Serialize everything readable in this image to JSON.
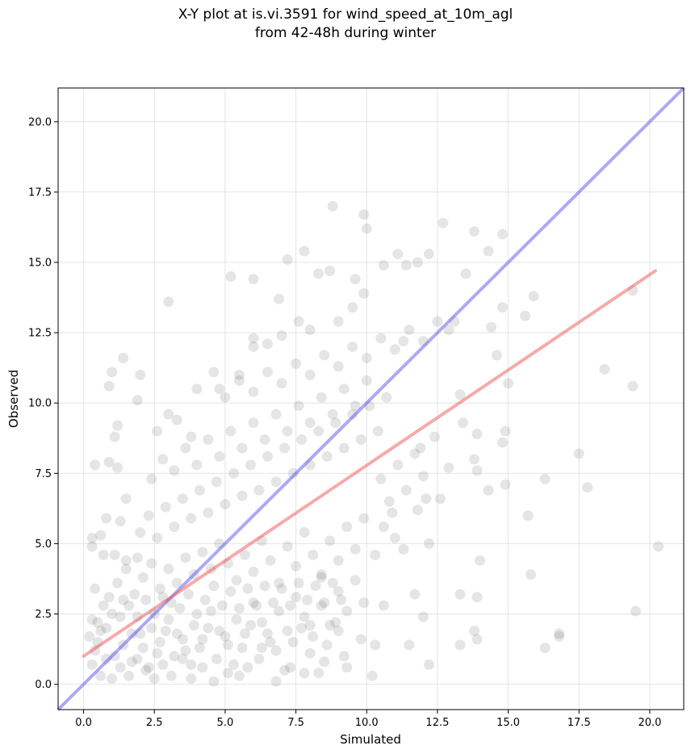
{
  "chart_data": {
    "type": "scatter",
    "title_line1": "X-Y plot at is.vi.3591 for wind_speed_at_10m_agl",
    "title_line2": "from 42-48h during winter",
    "xlabel": "Simulated",
    "ylabel": "Observed",
    "xlim": [
      -0.9,
      21.2
    ],
    "ylim": [
      -0.9,
      21.2
    ],
    "xticks": [
      "0.0",
      "2.5",
      "5.0",
      "7.5",
      "10.0",
      "12.5",
      "15.0",
      "17.5",
      "20.0"
    ],
    "yticks": [
      "0.0",
      "2.5",
      "5.0",
      "7.5",
      "10.0",
      "12.5",
      "15.0",
      "17.5",
      "20.0"
    ],
    "grid": true,
    "colors": {
      "points": "#333333",
      "identity": "#5555ee",
      "fit": "#ee5555"
    },
    "identity_line": {
      "x": [
        -0.9,
        21.2
      ],
      "y": [
        -0.9,
        21.2
      ]
    },
    "fit_line": {
      "x": [
        0.0,
        20.2
      ],
      "y": [
        1.0,
        14.7
      ]
    },
    "points": [
      [
        1.0,
        11.1
      ],
      [
        1.4,
        11.6
      ],
      [
        0.9,
        10.6
      ],
      [
        1.9,
        10.1
      ],
      [
        2.0,
        11.0
      ],
      [
        1.2,
        9.2
      ],
      [
        1.1,
        8.8
      ],
      [
        0.9,
        7.9
      ],
      [
        0.4,
        7.8
      ],
      [
        1.2,
        7.7
      ],
      [
        1.5,
        6.6
      ],
      [
        1.3,
        5.8
      ],
      [
        0.8,
        5.9
      ],
      [
        0.6,
        5.3
      ],
      [
        0.3,
        5.2
      ],
      [
        0.3,
        4.9
      ],
      [
        0.7,
        4.6
      ],
      [
        1.1,
        4.6
      ],
      [
        1.5,
        4.4
      ],
      [
        1.9,
        4.5
      ],
      [
        3.0,
        13.6
      ],
      [
        2.6,
        9.0
      ],
      [
        3.0,
        9.6
      ],
      [
        3.3,
        9.4
      ],
      [
        3.8,
        8.8
      ],
      [
        4.0,
        10.5
      ],
      [
        4.6,
        11.1
      ],
      [
        4.8,
        10.5
      ],
      [
        5.2,
        14.5
      ],
      [
        6.0,
        14.4
      ],
      [
        5.5,
        11.0
      ],
      [
        6.0,
        12.0
      ],
      [
        6.5,
        12.1
      ],
      [
        6.9,
        13.7
      ],
      [
        7.2,
        15.1
      ],
      [
        7.8,
        15.4
      ],
      [
        7.6,
        12.9
      ],
      [
        8.3,
        14.6
      ],
      [
        8.8,
        17.0
      ],
      [
        8.7,
        14.7
      ],
      [
        9.6,
        14.4
      ],
      [
        9.9,
        13.9
      ],
      [
        9.5,
        13.4
      ],
      [
        9.9,
        16.7
      ],
      [
        10.0,
        16.2
      ],
      [
        10.6,
        14.9
      ],
      [
        11.1,
        15.3
      ],
      [
        11.4,
        14.9
      ],
      [
        11.8,
        15.0
      ],
      [
        11.3,
        12.2
      ],
      [
        12.2,
        15.3
      ],
      [
        12.7,
        16.4
      ],
      [
        13.1,
        12.9
      ],
      [
        12.9,
        12.6
      ],
      [
        13.5,
        14.6
      ],
      [
        13.8,
        16.1
      ],
      [
        14.3,
        15.4
      ],
      [
        14.4,
        12.7
      ],
      [
        14.8,
        16.0
      ],
      [
        14.8,
        13.4
      ],
      [
        15.6,
        13.1
      ],
      [
        15.9,
        13.8
      ],
      [
        14.6,
        11.7
      ],
      [
        15.0,
        10.7
      ],
      [
        13.3,
        10.3
      ],
      [
        13.9,
        8.9
      ],
      [
        13.8,
        8.0
      ],
      [
        13.4,
        9.3
      ],
      [
        13.9,
        7.6
      ],
      [
        14.3,
        6.9
      ],
      [
        14.9,
        7.1
      ],
      [
        14.8,
        8.6
      ],
      [
        14.9,
        9.0
      ],
      [
        12.9,
        7.7
      ],
      [
        12.6,
        6.6
      ],
      [
        12.1,
        6.6
      ],
      [
        12.4,
        8.8
      ],
      [
        11.9,
        8.4
      ],
      [
        12.2,
        5.0
      ],
      [
        11.8,
        6.2
      ],
      [
        11.7,
        3.2
      ],
      [
        11.5,
        1.4
      ],
      [
        12.0,
        2.4
      ],
      [
        12.2,
        0.7
      ],
      [
        13.3,
        1.4
      ],
      [
        13.3,
        3.2
      ],
      [
        13.8,
        1.9
      ],
      [
        13.9,
        3.1
      ],
      [
        13.9,
        1.6
      ],
      [
        14.0,
        4.4
      ],
      [
        15.7,
        6.0
      ],
      [
        15.8,
        3.9
      ],
      [
        16.3,
        7.3
      ],
      [
        16.3,
        1.3
      ],
      [
        16.8,
        1.7
      ],
      [
        16.8,
        1.8
      ],
      [
        17.5,
        8.2
      ],
      [
        17.8,
        7.0
      ],
      [
        18.4,
        11.2
      ],
      [
        19.4,
        14.0
      ],
      [
        19.4,
        10.6
      ],
      [
        19.5,
        2.6
      ],
      [
        20.3,
        4.9
      ],
      [
        10.3,
        4.6
      ],
      [
        10.6,
        2.8
      ],
      [
        10.3,
        1.4
      ],
      [
        10.2,
        0.3
      ],
      [
        9.8,
        1.6
      ],
      [
        9.3,
        0.6
      ],
      [
        9.0,
        1.9
      ],
      [
        8.5,
        0.8
      ],
      [
        8.4,
        3.8
      ],
      [
        8.0,
        2.1
      ],
      [
        7.8,
        0.4
      ],
      [
        7.3,
        0.6
      ],
      [
        6.8,
        0.1
      ],
      [
        6.3,
        1.3
      ],
      [
        5.8,
        0.6
      ],
      [
        5.5,
        0.3
      ],
      [
        5.1,
        0.4
      ],
      [
        4.6,
        0.1
      ],
      [
        4.2,
        0.6
      ],
      [
        3.8,
        0.2
      ],
      [
        3.5,
        0.9
      ],
      [
        3.1,
        0.3
      ],
      [
        2.8,
        0.7
      ],
      [
        2.5,
        0.2
      ],
      [
        2.2,
        0.5
      ],
      [
        1.9,
        0.9
      ],
      [
        1.6,
        0.3
      ],
      [
        1.3,
        0.6
      ],
      [
        1.0,
        0.2
      ],
      [
        0.8,
        0.9
      ],
      [
        0.6,
        0.3
      ],
      [
        0.4,
        1.2
      ],
      [
        0.3,
        0.7
      ],
      [
        0.2,
        1.7
      ],
      [
        0.5,
        2.2
      ],
      [
        0.7,
        2.8
      ],
      [
        0.4,
        3.4
      ],
      [
        0.9,
        3.1
      ],
      [
        1.3,
        2.4
      ],
      [
        1.7,
        1.8
      ],
      [
        2.1,
        1.3
      ],
      [
        2.4,
        2.0
      ],
      [
        2.7,
        1.5
      ],
      [
        3.0,
        2.3
      ],
      [
        3.3,
        1.8
      ],
      [
        3.6,
        1.2
      ],
      [
        3.9,
        2.1
      ],
      [
        4.2,
        1.6
      ],
      [
        4.5,
        2.6
      ],
      [
        4.8,
        1.9
      ],
      [
        5.1,
        1.4
      ],
      [
        5.4,
        2.3
      ],
      [
        5.7,
        1.8
      ],
      [
        6.0,
        2.9
      ],
      [
        6.3,
        2.2
      ],
      [
        6.6,
        1.5
      ],
      [
        6.9,
        2.6
      ],
      [
        7.2,
        1.9
      ],
      [
        7.5,
        3.1
      ],
      [
        7.8,
        2.4
      ],
      [
        8.1,
        1.7
      ],
      [
        8.4,
        2.8
      ],
      [
        8.7,
        2.1
      ],
      [
        9.0,
        3.3
      ],
      [
        9.3,
        2.6
      ],
      [
        9.6,
        3.7
      ],
      [
        9.9,
        2.9
      ],
      [
        1.2,
        3.6
      ],
      [
        1.5,
        4.1
      ],
      [
        1.8,
        3.2
      ],
      [
        2.1,
        3.8
      ],
      [
        2.4,
        4.3
      ],
      [
        2.7,
        3.4
      ],
      [
        3.0,
        4.1
      ],
      [
        3.3,
        3.6
      ],
      [
        3.6,
        4.5
      ],
      [
        3.9,
        3.9
      ],
      [
        4.2,
        4.7
      ],
      [
        4.5,
        4.1
      ],
      [
        4.8,
        5.0
      ],
      [
        5.1,
        4.3
      ],
      [
        5.4,
        3.7
      ],
      [
        5.7,
        4.6
      ],
      [
        6.0,
        4.0
      ],
      [
        6.3,
        5.1
      ],
      [
        6.6,
        4.4
      ],
      [
        6.9,
        3.6
      ],
      [
        7.2,
        4.9
      ],
      [
        7.5,
        4.2
      ],
      [
        7.8,
        5.4
      ],
      [
        8.1,
        4.6
      ],
      [
        8.4,
        3.9
      ],
      [
        8.7,
        5.1
      ],
      [
        9.0,
        4.4
      ],
      [
        9.3,
        5.6
      ],
      [
        9.6,
        4.8
      ],
      [
        9.9,
        5.9
      ],
      [
        2.0,
        5.4
      ],
      [
        2.3,
        6.0
      ],
      [
        2.6,
        5.2
      ],
      [
        2.9,
        6.3
      ],
      [
        3.2,
        5.6
      ],
      [
        3.5,
        6.6
      ],
      [
        3.8,
        5.9
      ],
      [
        4.1,
        6.9
      ],
      [
        4.4,
        6.1
      ],
      [
        4.7,
        7.2
      ],
      [
        5.0,
        6.4
      ],
      [
        5.3,
        7.5
      ],
      [
        5.6,
        6.7
      ],
      [
        5.9,
        7.8
      ],
      [
        6.2,
        6.9
      ],
      [
        6.5,
        8.1
      ],
      [
        6.8,
        7.2
      ],
      [
        7.1,
        8.4
      ],
      [
        7.4,
        7.5
      ],
      [
        7.7,
        8.7
      ],
      [
        8.0,
        7.8
      ],
      [
        8.3,
        9.0
      ],
      [
        8.6,
        8.1
      ],
      [
        8.9,
        9.3
      ],
      [
        9.2,
        8.4
      ],
      [
        9.5,
        9.6
      ],
      [
        9.8,
        8.7
      ],
      [
        10.1,
        9.9
      ],
      [
        10.4,
        9.0
      ],
      [
        10.7,
        10.2
      ],
      [
        2.4,
        7.3
      ],
      [
        2.8,
        8.0
      ],
      [
        3.2,
        7.6
      ],
      [
        3.6,
        8.4
      ],
      [
        4.0,
        7.8
      ],
      [
        4.4,
        8.7
      ],
      [
        4.8,
        8.1
      ],
      [
        5.2,
        9.0
      ],
      [
        5.6,
        8.4
      ],
      [
        6.0,
        9.3
      ],
      [
        6.4,
        8.7
      ],
      [
        6.8,
        9.6
      ],
      [
        7.2,
        9.0
      ],
      [
        7.6,
        9.9
      ],
      [
        8.0,
        9.3
      ],
      [
        8.4,
        10.2
      ],
      [
        8.8,
        9.6
      ],
      [
        9.2,
        10.5
      ],
      [
        9.6,
        9.9
      ],
      [
        10.0,
        10.8
      ],
      [
        5.0,
        10.2
      ],
      [
        5.5,
        10.8
      ],
      [
        6.0,
        10.4
      ],
      [
        6.5,
        11.1
      ],
      [
        7.0,
        10.7
      ],
      [
        7.5,
        11.4
      ],
      [
        8.0,
        11.0
      ],
      [
        8.5,
        11.7
      ],
      [
        9.0,
        11.3
      ],
      [
        9.5,
        12.0
      ],
      [
        10.0,
        11.6
      ],
      [
        10.5,
        12.3
      ],
      [
        11.0,
        11.9
      ],
      [
        11.5,
        12.6
      ],
      [
        12.0,
        12.2
      ],
      [
        12.5,
        12.9
      ],
      [
        6.0,
        12.3
      ],
      [
        7.0,
        12.4
      ],
      [
        8.0,
        12.6
      ],
      [
        9.0,
        12.9
      ],
      [
        10.5,
        7.3
      ],
      [
        10.8,
        6.5
      ],
      [
        11.1,
        7.8
      ],
      [
        11.4,
        6.9
      ],
      [
        11.7,
        8.2
      ],
      [
        12.0,
        7.4
      ],
      [
        10.6,
        5.6
      ],
      [
        11.0,
        5.2
      ],
      [
        11.3,
        4.8
      ],
      [
        10.9,
        6.1
      ],
      [
        0.5,
        1.5
      ],
      [
        0.8,
        2.0
      ],
      [
        1.1,
        1.0
      ],
      [
        1.4,
        1.4
      ],
      [
        1.7,
        0.8
      ],
      [
        2.0,
        1.8
      ],
      [
        2.3,
        0.6
      ],
      [
        2.6,
        1.1
      ],
      [
        2.9,
        1.9
      ],
      [
        3.2,
        1.0
      ],
      [
        3.5,
        1.6
      ],
      [
        3.8,
        0.7
      ],
      [
        4.1,
        1.3
      ],
      [
        4.4,
        2.0
      ],
      [
        4.7,
        0.9
      ],
      [
        5.0,
        1.7
      ],
      [
        5.3,
        0.7
      ],
      [
        5.6,
        1.3
      ],
      [
        5.9,
        2.1
      ],
      [
        6.2,
        0.9
      ],
      [
        6.5,
        1.8
      ],
      [
        6.8,
        1.2
      ],
      [
        7.1,
        0.5
      ],
      [
        7.4,
        1.5
      ],
      [
        7.7,
        2.0
      ],
      [
        8.0,
        1.1
      ],
      [
        8.3,
        0.4
      ],
      [
        8.6,
        1.4
      ],
      [
        8.9,
        2.2
      ],
      [
        9.2,
        1.0
      ],
      [
        3.4,
        2.7
      ],
      [
        3.7,
        3.2
      ],
      [
        4.0,
        2.5
      ],
      [
        4.3,
        3.0
      ],
      [
        4.6,
        3.5
      ],
      [
        4.9,
        2.8
      ],
      [
        5.2,
        3.3
      ],
      [
        5.5,
        2.7
      ],
      [
        5.8,
        3.4
      ],
      [
        6.1,
        2.8
      ],
      [
        6.4,
        3.5
      ],
      [
        6.7,
        2.9
      ],
      [
        7.0,
        3.4
      ],
      [
        7.3,
        2.8
      ],
      [
        7.6,
        3.6
      ],
      [
        7.9,
        3.0
      ],
      [
        8.2,
        3.5
      ],
      [
        8.5,
        2.9
      ],
      [
        8.8,
        3.6
      ],
      [
        9.1,
        3.0
      ],
      [
        1.6,
        2.8
      ],
      [
        1.9,
        2.4
      ],
      [
        2.2,
        3.0
      ],
      [
        2.5,
        2.5
      ],
      [
        2.8,
        3.1
      ],
      [
        3.1,
        2.9
      ],
      [
        1.0,
        2.5
      ],
      [
        0.6,
        1.9
      ],
      [
        0.3,
        2.3
      ],
      [
        1.4,
        3.0
      ]
    ]
  }
}
